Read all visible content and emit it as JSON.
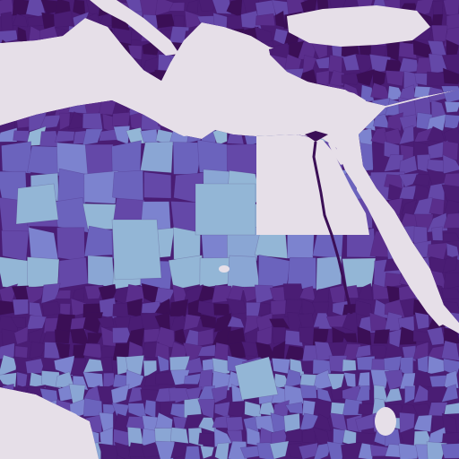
{
  "map": {
    "colors": {
      "water": "#e6dfe8",
      "deep": "#3b0f56",
      "dark": "#4a1d74",
      "mid_dark": "#5a2e8c",
      "mid": "#6448a8",
      "blue_violet": "#6b63bd",
      "periwinkle": "#7c83cf",
      "light_blue": "#8aa6d4",
      "pale_blue": "#93b6d6"
    }
  }
}
